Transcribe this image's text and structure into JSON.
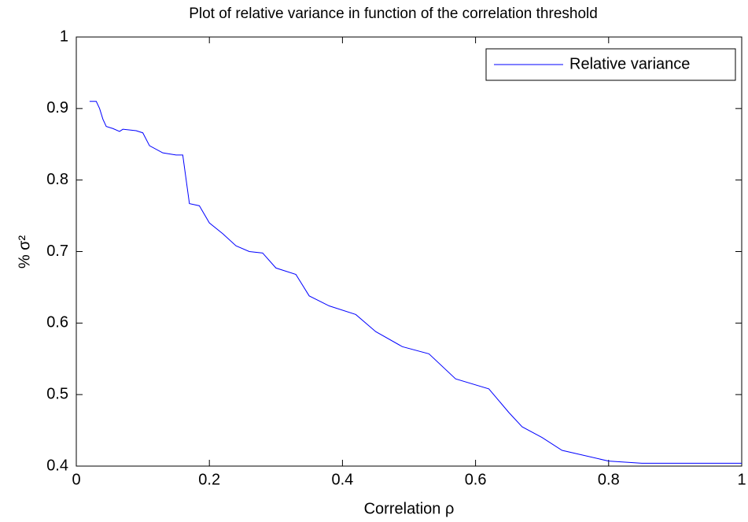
{
  "chart_data": {
    "type": "line",
    "title": "Plot of relative variance in function of the correlation threshold",
    "xlabel": "Correlation ρ",
    "ylabel": "% σ²",
    "x": [
      0.02,
      0.03,
      0.035,
      0.04,
      0.045,
      0.055,
      0.065,
      0.07,
      0.09,
      0.1,
      0.11,
      0.13,
      0.15,
      0.16,
      0.17,
      0.185,
      0.2,
      0.22,
      0.24,
      0.26,
      0.28,
      0.3,
      0.33,
      0.35,
      0.38,
      0.42,
      0.45,
      0.49,
      0.53,
      0.57,
      0.62,
      0.65,
      0.67,
      0.7,
      0.73,
      0.8,
      0.85,
      1.0
    ],
    "series": [
      {
        "name": "Relative variance",
        "color": "#0000ff",
        "values": [
          0.91,
          0.91,
          0.9,
          0.885,
          0.875,
          0.872,
          0.868,
          0.871,
          0.869,
          0.866,
          0.848,
          0.838,
          0.835,
          0.835,
          0.767,
          0.764,
          0.74,
          0.725,
          0.708,
          0.7,
          0.698,
          0.677,
          0.668,
          0.638,
          0.624,
          0.612,
          0.588,
          0.567,
          0.557,
          0.522,
          0.508,
          0.475,
          0.455,
          0.44,
          0.422,
          0.407,
          0.404,
          0.404
        ]
      }
    ],
    "xlim": [
      0,
      1
    ],
    "ylim": [
      0.4,
      1
    ],
    "xticks": [
      0,
      0.2,
      0.4,
      0.6,
      0.8,
      1
    ],
    "yticks": [
      0.4,
      0.5,
      0.6,
      0.7,
      0.8,
      0.9,
      1
    ],
    "grid": false,
    "legend": "upper right"
  }
}
